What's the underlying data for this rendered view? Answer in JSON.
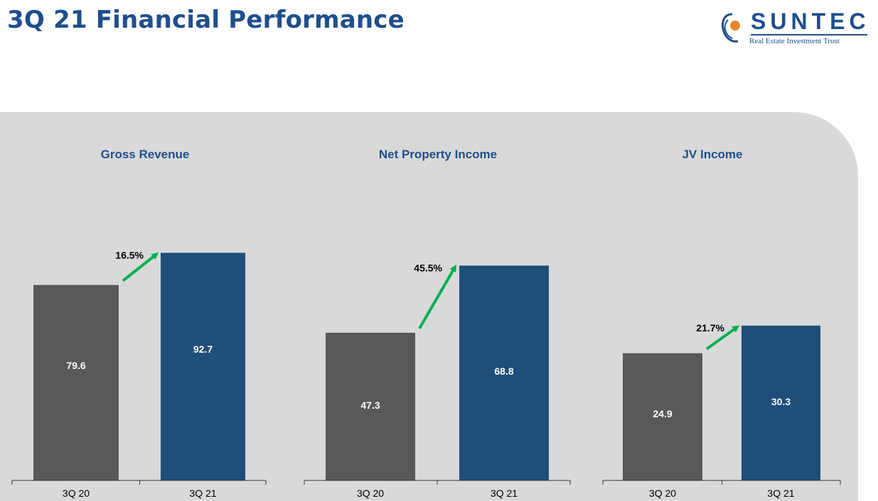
{
  "header": {
    "title": "3Q 21 Financial Performance",
    "logo_word": "SUNTEC",
    "logo_tagline": "Real Estate Investment Trust"
  },
  "colors": {
    "title": "#1f4e8c",
    "bar_prior": "#595959",
    "bar_current": "#1f4e79",
    "arrow": "#00b050",
    "panel": "#d9d9d9"
  },
  "chart_data": [
    {
      "type": "bar",
      "title": "Gross Revenue",
      "categories": [
        "3Q 20",
        "3Q 21"
      ],
      "values": [
        79.6,
        92.7
      ],
      "value_labels": [
        "79.6",
        "92.7"
      ],
      "growth_label": "16.5%",
      "ylim": [
        0,
        100
      ]
    },
    {
      "type": "bar",
      "title": "Net Property Income",
      "categories": [
        "3Q 20",
        "3Q 21"
      ],
      "values": [
        47.3,
        68.8
      ],
      "value_labels": [
        "47.3",
        "68.8"
      ],
      "growth_label": "45.5%",
      "ylim": [
        0,
        100
      ]
    },
    {
      "type": "bar",
      "title": "JV Income",
      "categories": [
        "3Q 20",
        "3Q 21"
      ],
      "values": [
        24.9,
        30.3
      ],
      "value_labels": [
        "24.9",
        "30.3"
      ],
      "growth_label": "21.7%",
      "ylim": [
        0,
        40
      ]
    }
  ]
}
